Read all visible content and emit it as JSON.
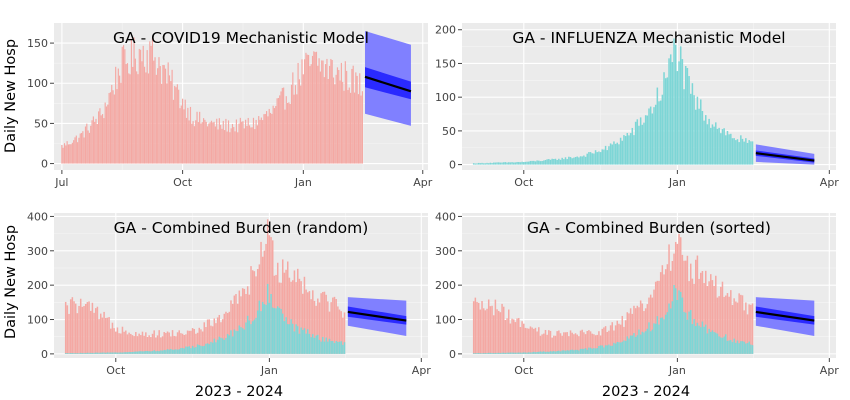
{
  "figure": {
    "ylabel": "Daily New Hosp",
    "xlabel": "2023 - 2024"
  },
  "chart_data": [
    {
      "id": "covid",
      "type": "bar",
      "title": "GA - COVID19 Mechanistic Model",
      "ylabel": "Daily New Hosp",
      "xlabel": "",
      "x_type": "date",
      "xlim": [
        "2023-06-25",
        "2024-04-05"
      ],
      "ylim": [
        -8,
        175
      ],
      "x_ticks": [
        {
          "date": "2023-07-01",
          "label": "Jul"
        },
        {
          "date": "2023-10-01",
          "label": "Oct"
        },
        {
          "date": "2024-01-01",
          "label": "Jan"
        },
        {
          "date": "2024-04-01",
          "label": "Apr"
        }
      ],
      "y_ticks": [
        0,
        50,
        100,
        150
      ],
      "series": [
        {
          "color": "#f4a8a3",
          "x_start": "2023-07-01",
          "x_end": "2024-02-15",
          "anchors": [
            [
              "2023-07-01",
              22
            ],
            [
              "2023-07-15",
              35
            ],
            [
              "2023-08-01",
              65
            ],
            [
              "2023-08-15",
              125
            ],
            [
              "2023-09-01",
              145
            ],
            [
              "2023-09-10",
              138
            ],
            [
              "2023-09-25",
              95
            ],
            [
              "2023-10-10",
              58
            ],
            [
              "2023-10-25",
              50
            ],
            [
              "2023-11-10",
              48
            ],
            [
              "2023-11-25",
              52
            ],
            [
              "2023-12-10",
              68
            ],
            [
              "2023-12-20",
              90
            ],
            [
              "2024-01-01",
              120
            ],
            [
              "2024-01-10",
              130
            ],
            [
              "2024-01-25",
              118
            ],
            [
              "2024-02-05",
              110
            ],
            [
              "2024-02-15",
              98
            ]
          ]
        }
      ],
      "forecast": {
        "x_start": "2024-02-17",
        "x_end": "2024-03-23",
        "median": [
          108,
          90
        ],
        "inner": [
          [
            95,
            120
          ],
          [
            80,
            102
          ]
        ],
        "outer": [
          [
            62,
            165
          ],
          [
            47,
            148
          ]
        ]
      }
    },
    {
      "id": "flu",
      "type": "bar",
      "title": "GA - INFLUENZA Mechanistic Model",
      "ylabel": "",
      "xlabel": "",
      "x_type": "date",
      "xlim": [
        "2023-08-25",
        "2024-04-05"
      ],
      "ylim": [
        -8,
        210
      ],
      "x_ticks": [
        {
          "date": "2023-10-01",
          "label": "Oct"
        },
        {
          "date": "2024-01-01",
          "label": "Jan"
        },
        {
          "date": "2024-04-01",
          "label": "Apr"
        }
      ],
      "y_ticks": [
        0,
        50,
        100,
        150,
        200
      ],
      "series": [
        {
          "color": "#7dd6d6",
          "x_start": "2023-09-01",
          "x_end": "2024-02-15",
          "anchors": [
            [
              "2023-09-01",
              2
            ],
            [
              "2023-10-01",
              4
            ],
            [
              "2023-10-20",
              8
            ],
            [
              "2023-11-05",
              13
            ],
            [
              "2023-11-20",
              25
            ],
            [
              "2023-12-05",
              50
            ],
            [
              "2023-12-15",
              80
            ],
            [
              "2023-12-22",
              110
            ],
            [
              "2023-12-28",
              150
            ],
            [
              "2023-12-31",
              185
            ],
            [
              "2024-01-05",
              135
            ],
            [
              "2024-01-12",
              95
            ],
            [
              "2024-01-20",
              70
            ],
            [
              "2024-02-01",
              45
            ],
            [
              "2024-02-15",
              30
            ]
          ]
        }
      ],
      "forecast": {
        "x_start": "2024-02-17",
        "x_end": "2024-03-23",
        "median": [
          17,
          6
        ],
        "inner": [
          [
            13,
            21
          ],
          [
            3,
            9
          ]
        ],
        "outer": [
          [
            4,
            30
          ],
          [
            0,
            16
          ]
        ]
      }
    },
    {
      "id": "combined_random",
      "type": "bar",
      "title": "GA - Combined Burden (random)",
      "ylabel": "Daily New Hosp",
      "xlabel": "2023 - 2024",
      "x_type": "date",
      "xlim": [
        "2023-08-25",
        "2024-04-05"
      ],
      "ylim": [
        -12,
        410
      ],
      "x_ticks": [
        {
          "date": "2023-10-01",
          "label": "Oct"
        },
        {
          "date": "2024-01-01",
          "label": "Jan"
        },
        {
          "date": "2024-04-01",
          "label": "Apr"
        }
      ],
      "y_ticks": [
        0,
        100,
        200,
        300,
        400
      ],
      "series": [
        {
          "color": "#f4a8a3",
          "x_start": "2023-09-01",
          "x_end": "2024-02-15",
          "anchors": [
            [
              "2023-09-01",
              140
            ],
            [
              "2023-09-10",
              150
            ],
            [
              "2023-09-20",
              120
            ],
            [
              "2023-10-01",
              80
            ],
            [
              "2023-10-15",
              60
            ],
            [
              "2023-11-01",
              60
            ],
            [
              "2023-11-15",
              65
            ],
            [
              "2023-12-01",
              100
            ],
            [
              "2023-12-15",
              170
            ],
            [
              "2023-12-25",
              260
            ],
            [
              "2023-12-31",
              345
            ],
            [
              "2024-01-05",
              270
            ],
            [
              "2024-01-15",
              250
            ],
            [
              "2024-01-25",
              190
            ],
            [
              "2024-02-05",
              160
            ],
            [
              "2024-02-15",
              130
            ]
          ]
        },
        {
          "color": "#7dd6d6",
          "x_start": "2023-09-01",
          "x_end": "2024-02-15",
          "anchors": [
            [
              "2023-09-01",
              2
            ],
            [
              "2023-10-01",
              4
            ],
            [
              "2023-10-20",
              8
            ],
            [
              "2023-11-05",
              13
            ],
            [
              "2023-11-20",
              25
            ],
            [
              "2023-12-05",
              50
            ],
            [
              "2023-12-15",
              80
            ],
            [
              "2023-12-22",
              110
            ],
            [
              "2023-12-28",
              150
            ],
            [
              "2023-12-31",
              190
            ],
            [
              "2024-01-05",
              135
            ],
            [
              "2024-01-12",
              95
            ],
            [
              "2024-01-20",
              70
            ],
            [
              "2024-02-01",
              45
            ],
            [
              "2024-02-15",
              30
            ]
          ]
        }
      ],
      "forecast": {
        "x_start": "2024-02-17",
        "x_end": "2024-03-23",
        "median": [
          122,
          97
        ],
        "inner": [
          [
            108,
            138
          ],
          [
            85,
            110
          ]
        ],
        "outer": [
          [
            82,
            165
          ],
          [
            52,
            155
          ]
        ]
      }
    },
    {
      "id": "combined_sorted",
      "type": "bar",
      "title": "GA - Combined Burden (sorted)",
      "ylabel": "",
      "xlabel": "2023 - 2024",
      "x_type": "date",
      "xlim": [
        "2023-08-25",
        "2024-04-05"
      ],
      "ylim": [
        -12,
        410
      ],
      "x_ticks": [
        {
          "date": "2023-10-01",
          "label": "Oct"
        },
        {
          "date": "2024-01-01",
          "label": "Jan"
        },
        {
          "date": "2024-04-01",
          "label": "Apr"
        }
      ],
      "y_ticks": [
        0,
        100,
        200,
        300,
        400
      ],
      "series": [
        {
          "color": "#f4a8a3",
          "x_start": "2023-09-01",
          "x_end": "2024-02-15",
          "anchors": [
            [
              "2023-09-01",
              140
            ],
            [
              "2023-09-10",
              150
            ],
            [
              "2023-09-20",
              120
            ],
            [
              "2023-10-01",
              80
            ],
            [
              "2023-10-15",
              60
            ],
            [
              "2023-11-01",
              60
            ],
            [
              "2023-11-15",
              65
            ],
            [
              "2023-12-01",
              100
            ],
            [
              "2023-12-15",
              170
            ],
            [
              "2023-12-25",
              260
            ],
            [
              "2023-12-31",
              345
            ],
            [
              "2024-01-05",
              270
            ],
            [
              "2024-01-15",
              250
            ],
            [
              "2024-01-25",
              190
            ],
            [
              "2024-02-05",
              160
            ],
            [
              "2024-02-15",
              130
            ]
          ]
        },
        {
          "color": "#7dd6d6",
          "x_start": "2023-09-01",
          "x_end": "2024-02-15",
          "anchors": [
            [
              "2023-09-01",
              2
            ],
            [
              "2023-10-01",
              4
            ],
            [
              "2023-10-20",
              8
            ],
            [
              "2023-11-05",
              13
            ],
            [
              "2023-11-20",
              25
            ],
            [
              "2023-12-05",
              50
            ],
            [
              "2023-12-15",
              80
            ],
            [
              "2023-12-22",
              110
            ],
            [
              "2023-12-28",
              150
            ],
            [
              "2023-12-31",
              190
            ],
            [
              "2024-01-05",
              135
            ],
            [
              "2024-01-12",
              95
            ],
            [
              "2024-01-20",
              70
            ],
            [
              "2024-02-01",
              45
            ],
            [
              "2024-02-15",
              30
            ]
          ]
        }
      ],
      "forecast": {
        "x_start": "2024-02-17",
        "x_end": "2024-03-23",
        "median": [
          122,
          97
        ],
        "inner": [
          [
            108,
            138
          ],
          [
            85,
            110
          ]
        ],
        "outer": [
          [
            82,
            165
          ],
          [
            52,
            155
          ]
        ]
      }
    }
  ],
  "colors": {
    "panel_background": "#ebebeb",
    "gridline": "#ffffff",
    "forecast_outer": "#8080ff",
    "forecast_inner": "#2a2aff",
    "forecast_median": "#000000"
  }
}
